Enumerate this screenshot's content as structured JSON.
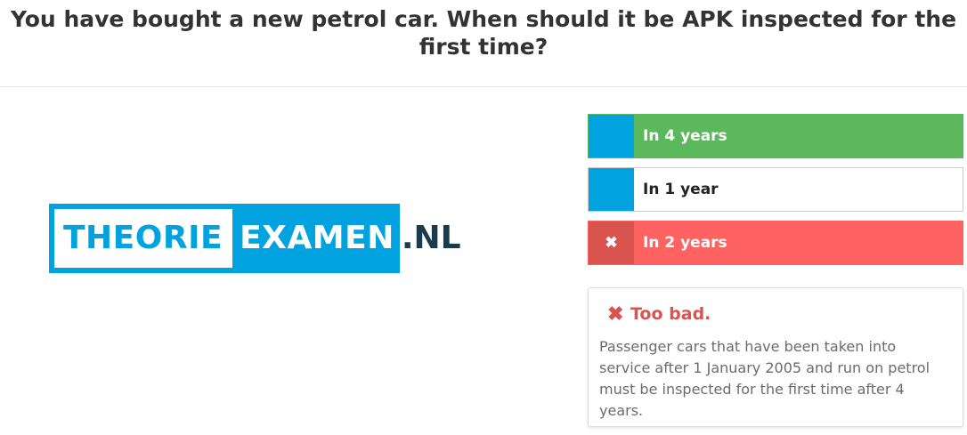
{
  "question": {
    "text": "You have bought a new petrol car. When should it be APK inspected for the first time?"
  },
  "logo": {
    "part1": "THEORIE",
    "part2": "EXAMEN",
    "part3": ".NL",
    "colors": {
      "blue": "#00a2e0",
      "dark": "#1b3b4d"
    }
  },
  "answers": [
    {
      "label": "In 4 years",
      "state": "correct",
      "marker_icon": ""
    },
    {
      "label": "In 1 year",
      "state": "neutral",
      "marker_icon": ""
    },
    {
      "label": "In 2 years",
      "state": "wrong",
      "marker_icon": "✖"
    }
  ],
  "feedback": {
    "icon": "✖",
    "title": "Too bad.",
    "text": "Passenger cars that have been taken into service after 1 January 2005 and run on petrol must be inspected for the first time after 4 years."
  },
  "colors": {
    "correct": "#5cb85c",
    "wrong": "#ff6361",
    "wrong_dark": "#d9534f",
    "accent": "#00a2e0"
  }
}
